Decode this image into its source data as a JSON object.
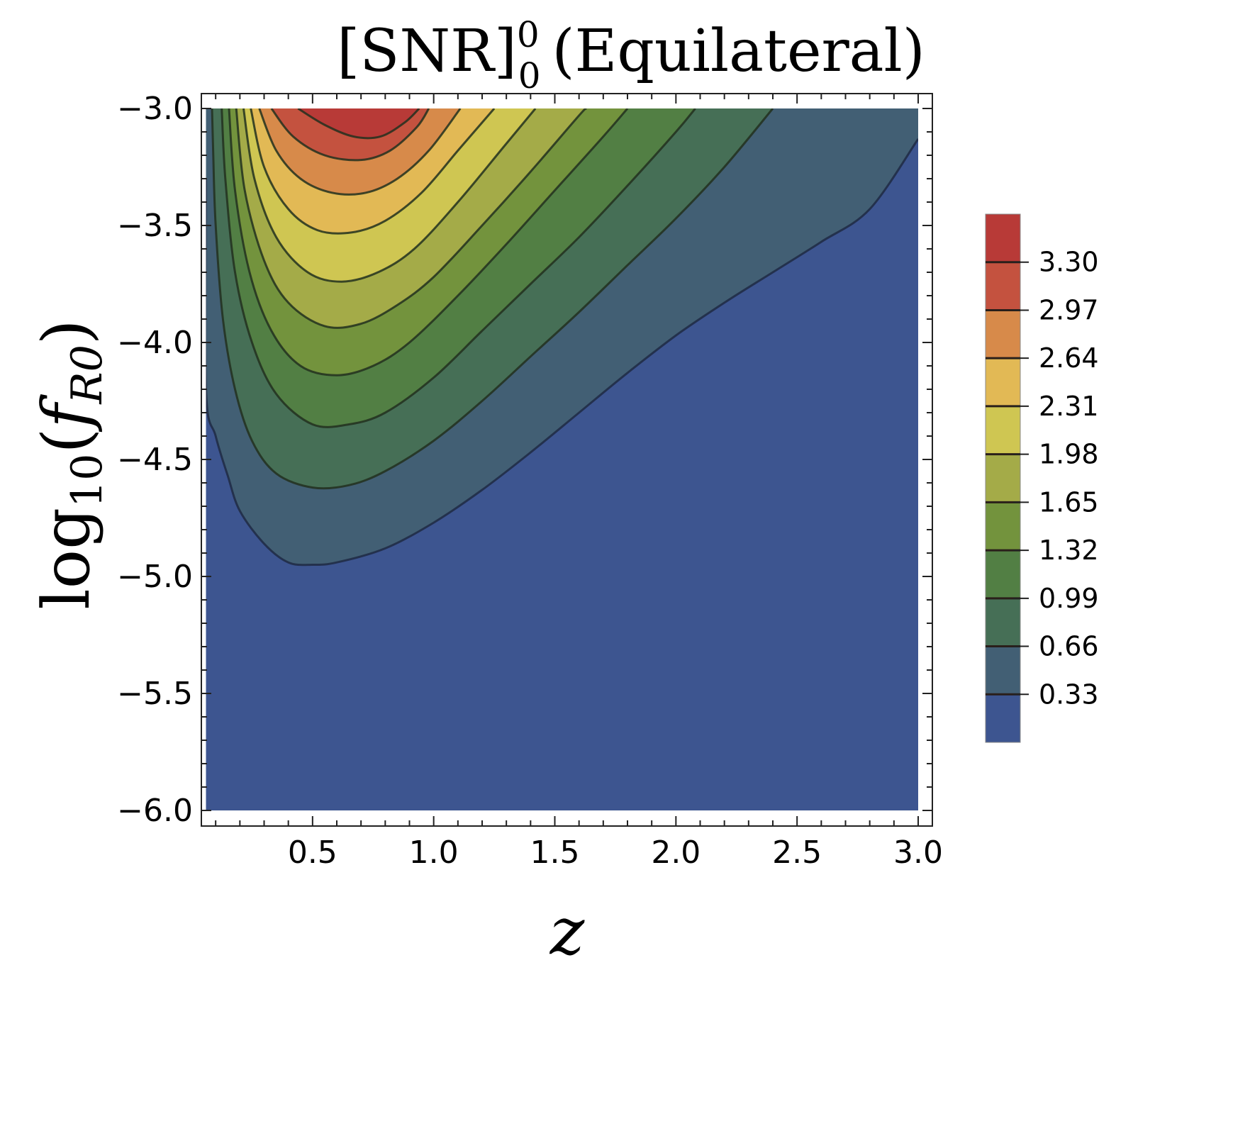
{
  "chart_data": {
    "type": "contour",
    "title": {
      "base": "[SNR]",
      "superscript": "0",
      "subscript": "0",
      "suffix": "(Equilateral)"
    },
    "xlabel": "z",
    "ylabel": {
      "log": "log",
      "log_sub": "10",
      "open": "(",
      "f": "f",
      "f_sub": "R0",
      "close": ")"
    },
    "xlim": [
      0.0,
      3.0
    ],
    "ylim": [
      -6.0,
      -3.0
    ],
    "x_data_range": [
      0.06,
      3.0
    ],
    "x_ticks": [
      {
        "value": 0.5,
        "label": "0.5"
      },
      {
        "value": 1.0,
        "label": "1.0"
      },
      {
        "value": 1.5,
        "label": "1.5"
      },
      {
        "value": 2.0,
        "label": "2.0"
      },
      {
        "value": 2.5,
        "label": "2.5"
      },
      {
        "value": 3.0,
        "label": "3.0"
      }
    ],
    "y_ticks": [
      {
        "value": -3.0,
        "label": "−3.0"
      },
      {
        "value": -3.5,
        "label": "−3.5"
      },
      {
        "value": -4.0,
        "label": "−4.0"
      },
      {
        "value": -4.5,
        "label": "−4.5"
      },
      {
        "value": -5.0,
        "label": "−5.0"
      },
      {
        "value": -5.5,
        "label": "−5.5"
      },
      {
        "value": -6.0,
        "label": "−6.0"
      }
    ],
    "levels": [
      0.33,
      0.66,
      0.99,
      1.32,
      1.65,
      1.98,
      2.31,
      2.64,
      2.97,
      3.3
    ],
    "level_labels": [
      "0.33",
      "0.66",
      "0.99",
      "1.32",
      "1.65",
      "1.98",
      "2.31",
      "2.64",
      "2.97",
      "3.30"
    ],
    "colorbar_max": 3.63,
    "band_colors": [
      "#3d5590",
      "#425f74",
      "#466f56",
      "#527f44",
      "#73933d",
      "#a4ab48",
      "#cfc652",
      "#e2b955",
      "#d78a4a",
      "#c4523f",
      "#b83a37"
    ],
    "contours": [
      {
        "level": 0.33,
        "points": [
          [
            0.06,
            -3.3
          ],
          [
            0.06,
            -4.2
          ],
          [
            0.1,
            -4.4
          ],
          [
            0.15,
            -4.57
          ],
          [
            0.2,
            -4.72
          ],
          [
            0.3,
            -4.86
          ],
          [
            0.4,
            -4.94
          ],
          [
            0.5,
            -4.95
          ],
          [
            0.6,
            -4.94
          ],
          [
            0.8,
            -4.88
          ],
          [
            1.0,
            -4.77
          ],
          [
            1.2,
            -4.63
          ],
          [
            1.4,
            -4.47
          ],
          [
            1.6,
            -4.3
          ],
          [
            1.8,
            -4.13
          ],
          [
            2.0,
            -3.97
          ],
          [
            2.2,
            -3.83
          ],
          [
            2.4,
            -3.7
          ],
          [
            2.6,
            -3.57
          ],
          [
            2.8,
            -3.43
          ],
          [
            3.0,
            -3.13
          ]
        ]
      },
      {
        "level": 0.66,
        "points": [
          [
            0.085,
            -3.0
          ],
          [
            0.09,
            -3.2
          ],
          [
            0.1,
            -3.5
          ],
          [
            0.13,
            -3.9
          ],
          [
            0.18,
            -4.2
          ],
          [
            0.25,
            -4.42
          ],
          [
            0.35,
            -4.56
          ],
          [
            0.5,
            -4.62
          ],
          [
            0.65,
            -4.61
          ],
          [
            0.8,
            -4.55
          ],
          [
            1.0,
            -4.42
          ],
          [
            1.2,
            -4.25
          ],
          [
            1.4,
            -4.06
          ],
          [
            1.6,
            -3.87
          ],
          [
            1.8,
            -3.67
          ],
          [
            2.0,
            -3.47
          ],
          [
            2.2,
            -3.25
          ],
          [
            2.4,
            -3.0
          ]
        ]
      },
      {
        "level": 0.99,
        "points": [
          [
            0.125,
            -3.0
          ],
          [
            0.14,
            -3.3
          ],
          [
            0.18,
            -3.7
          ],
          [
            0.25,
            -4.0
          ],
          [
            0.35,
            -4.22
          ],
          [
            0.5,
            -4.35
          ],
          [
            0.65,
            -4.35
          ],
          [
            0.8,
            -4.3
          ],
          [
            1.0,
            -4.15
          ],
          [
            1.2,
            -3.95
          ],
          [
            1.4,
            -3.75
          ],
          [
            1.6,
            -3.55
          ],
          [
            1.8,
            -3.33
          ],
          [
            2.0,
            -3.1
          ],
          [
            2.08,
            -3.0
          ]
        ]
      },
      {
        "level": 1.32,
        "points": [
          [
            0.155,
            -3.0
          ],
          [
            0.18,
            -3.35
          ],
          [
            0.24,
            -3.7
          ],
          [
            0.33,
            -3.95
          ],
          [
            0.45,
            -4.1
          ],
          [
            0.6,
            -4.14
          ],
          [
            0.75,
            -4.1
          ],
          [
            0.9,
            -4.0
          ],
          [
            1.1,
            -3.8
          ],
          [
            1.3,
            -3.58
          ],
          [
            1.5,
            -3.35
          ],
          [
            1.7,
            -3.12
          ],
          [
            1.8,
            -3.0
          ]
        ]
      },
      {
        "level": 1.65,
        "points": [
          [
            0.185,
            -3.0
          ],
          [
            0.22,
            -3.35
          ],
          [
            0.3,
            -3.65
          ],
          [
            0.4,
            -3.83
          ],
          [
            0.55,
            -3.93
          ],
          [
            0.7,
            -3.92
          ],
          [
            0.85,
            -3.84
          ],
          [
            1.0,
            -3.72
          ],
          [
            1.2,
            -3.5
          ],
          [
            1.4,
            -3.27
          ],
          [
            1.6,
            -3.03
          ],
          [
            1.63,
            -3.0
          ]
        ]
      },
      {
        "level": 1.98,
        "points": [
          [
            0.215,
            -3.0
          ],
          [
            0.26,
            -3.3
          ],
          [
            0.35,
            -3.55
          ],
          [
            0.48,
            -3.7
          ],
          [
            0.62,
            -3.74
          ],
          [
            0.77,
            -3.7
          ],
          [
            0.92,
            -3.6
          ],
          [
            1.1,
            -3.4
          ],
          [
            1.3,
            -3.15
          ],
          [
            1.42,
            -3.0
          ]
        ]
      },
      {
        "level": 2.31,
        "points": [
          [
            0.245,
            -3.0
          ],
          [
            0.3,
            -3.25
          ],
          [
            0.4,
            -3.43
          ],
          [
            0.52,
            -3.52
          ],
          [
            0.66,
            -3.53
          ],
          [
            0.8,
            -3.48
          ],
          [
            0.95,
            -3.36
          ],
          [
            1.1,
            -3.18
          ],
          [
            1.25,
            -3.0
          ]
        ]
      },
      {
        "level": 2.64,
        "points": [
          [
            0.28,
            -3.0
          ],
          [
            0.35,
            -3.18
          ],
          [
            0.45,
            -3.3
          ],
          [
            0.58,
            -3.36
          ],
          [
            0.72,
            -3.36
          ],
          [
            0.85,
            -3.3
          ],
          [
            0.98,
            -3.18
          ],
          [
            1.11,
            -3.0
          ]
        ]
      },
      {
        "level": 2.97,
        "points": [
          [
            0.33,
            -3.0
          ],
          [
            0.42,
            -3.12
          ],
          [
            0.55,
            -3.2
          ],
          [
            0.7,
            -3.22
          ],
          [
            0.82,
            -3.18
          ],
          [
            0.93,
            -3.08
          ],
          [
            0.98,
            -3.0
          ]
        ]
      },
      {
        "level": 3.3,
        "points": [
          [
            0.44,
            -3.0
          ],
          [
            0.55,
            -3.07
          ],
          [
            0.67,
            -3.12
          ],
          [
            0.78,
            -3.12
          ],
          [
            0.88,
            -3.06
          ],
          [
            0.94,
            -3.0
          ]
        ]
      }
    ]
  }
}
